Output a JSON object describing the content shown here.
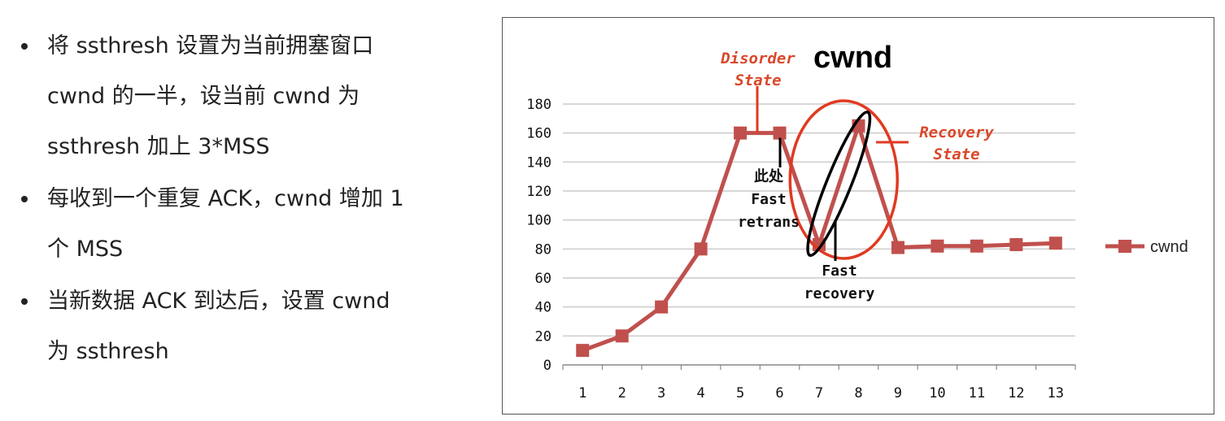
{
  "bullets": [
    "将 ssthresh 设置为当前拥塞窗口 cwnd 的一半，设当前 cwnd 为 ssthresh 加上 3*MSS",
    "每收到一个重复 ACK，cwnd 增加 1 个 MSS",
    "当新数据 ACK 到达后，设置 cwnd 为 ssthresh"
  ],
  "bullet_lines": [
    [
      "将 ssthresh 设置为当前拥塞窗口",
      "cwnd 的一半，设当前 cwnd 为",
      "ssthresh 加上 3*MSS"
    ],
    [
      "每收到一个重复 ACK，cwnd 增加 1",
      "个 MSS"
    ],
    [
      "当新数据 ACK 到达后，设置 cwnd",
      "为 ssthresh"
    ]
  ],
  "annotations": {
    "disorder_line1": "Disorder",
    "disorder_line2": "State",
    "recovery_line1": "Recovery",
    "recovery_line2": "State",
    "here_line1": "此处",
    "here_line2": "Fast",
    "here_line3": "retrans",
    "fastrec_line1": "Fast",
    "fastrec_line2": "recovery"
  },
  "colors": {
    "series": "#c0504d",
    "annotation_red": "#d9482b",
    "ellipse_red": "#e03a22",
    "ellipse_black": "#000000",
    "grid": "#bfbfbf"
  },
  "chart_data": {
    "type": "line",
    "title": "cwnd",
    "xlabel": "",
    "ylabel": "",
    "categories": [
      "1",
      "2",
      "3",
      "4",
      "5",
      "6",
      "7",
      "8",
      "9",
      "10",
      "11",
      "12",
      "13"
    ],
    "series": [
      {
        "name": "cwnd",
        "values": [
          10,
          20,
          40,
          80,
          160,
          160,
          83,
          165,
          81,
          82,
          82,
          83,
          84
        ]
      }
    ],
    "ylim": [
      0,
      180
    ],
    "yticks": [
      0,
      20,
      40,
      60,
      80,
      100,
      120,
      140,
      160,
      180
    ],
    "grid": true,
    "legend": "right",
    "marker": "square"
  }
}
